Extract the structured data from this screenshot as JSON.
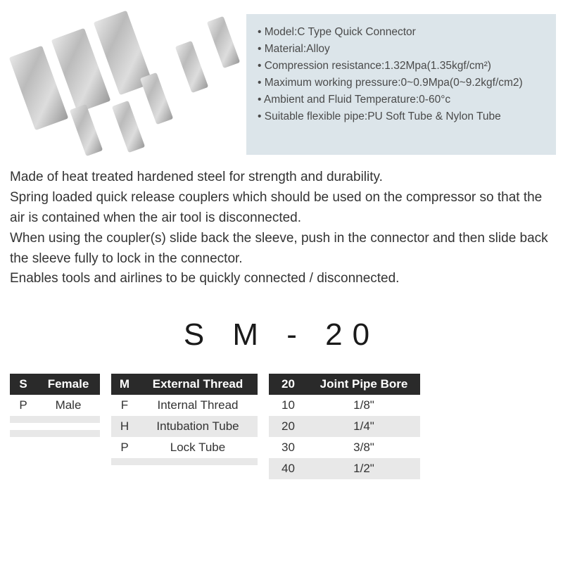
{
  "specs": {
    "items": [
      "Model:C Type Quick Connector",
      "Material:Alloy",
      "Compression resistance:1.32Mpa(1.35kgf/cm²)",
      "Maximum working pressure:0~0.9Mpa(0~9.2kgf/cm2)",
      "Ambient and Fluid Temperature:0-60°c",
      "Suitable flexible pipe:PU Soft Tube & Nylon Tube"
    ],
    "box_bg": "#dce5ea"
  },
  "description": {
    "lines": [
      "Made of heat treated hardened steel for strength and durability.",
      "Spring loaded quick release couplers which should be used on the compressor so that the air is contained when the air tool is disconnected.",
      "When using the coupler(s) slide back the sleeve, push in the connector and then slide back the sleeve fully to lock in the connector.",
      "Enables tools and airlines to be quickly connected / disconnected."
    ]
  },
  "model_code": "S M - 20",
  "table": {
    "header_bg": "#2a2a2a",
    "alt_row_bg": "#e8e8e8",
    "groups": [
      {
        "cols": [
          {
            "header": "S",
            "width": "w-s",
            "cells": [
              "P",
              "",
              "",
              ""
            ]
          },
          {
            "header": "Female",
            "width": "w-gender",
            "cells": [
              "Male",
              "",
              "",
              ""
            ]
          }
        ]
      },
      {
        "cols": [
          {
            "header": "M",
            "width": "w-m",
            "cells": [
              "F",
              "H",
              "P",
              ""
            ]
          },
          {
            "header": "External Thread",
            "width": "w-thread",
            "cells": [
              "Internal Thread",
              "Intubation Tube",
              "Lock Tube",
              ""
            ]
          }
        ]
      },
      {
        "cols": [
          {
            "header": "20",
            "width": "w-num",
            "cells": [
              "10",
              "20",
              "30",
              "40"
            ]
          },
          {
            "header": "Joint Pipe Bore",
            "width": "w-bore",
            "cells": [
              "1/8\"",
              "1/4\"",
              "3/8\"",
              "1/2\""
            ]
          }
        ]
      }
    ]
  }
}
